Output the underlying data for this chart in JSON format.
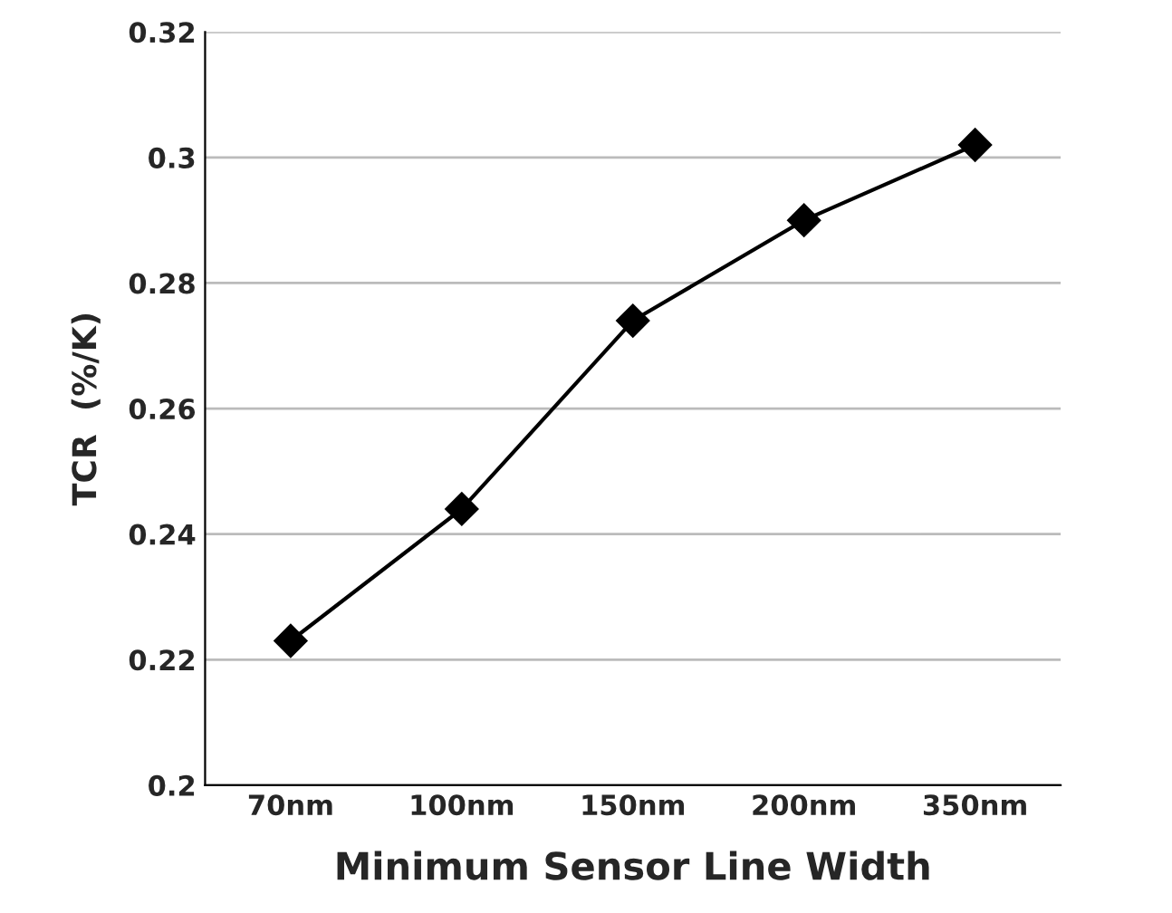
{
  "chart_data": {
    "type": "line",
    "xlabel": "Minimum Sensor Line Width",
    "ylabel": "TCR  (%/K)",
    "categories": [
      "70nm",
      "100nm",
      "150nm",
      "200nm",
      "350nm"
    ],
    "series": [
      {
        "color": "#000000",
        "values": [
          0.223,
          0.244,
          0.274,
          0.29,
          0.302
        ]
      }
    ],
    "ylim": [
      0.2,
      0.32
    ],
    "yticks": [
      {
        "value": 0.2,
        "label": "0.2"
      },
      {
        "value": 0.22,
        "label": "0.22"
      },
      {
        "value": 0.24,
        "label": "0.24"
      },
      {
        "value": 0.26,
        "label": "0.26"
      },
      {
        "value": 0.28,
        "label": "0.28"
      },
      {
        "value": 0.3,
        "label": "0.3"
      },
      {
        "value": 0.32,
        "label": "0.32"
      }
    ],
    "grid": "y",
    "marker": "diamond",
    "line_style": "solid"
  }
}
